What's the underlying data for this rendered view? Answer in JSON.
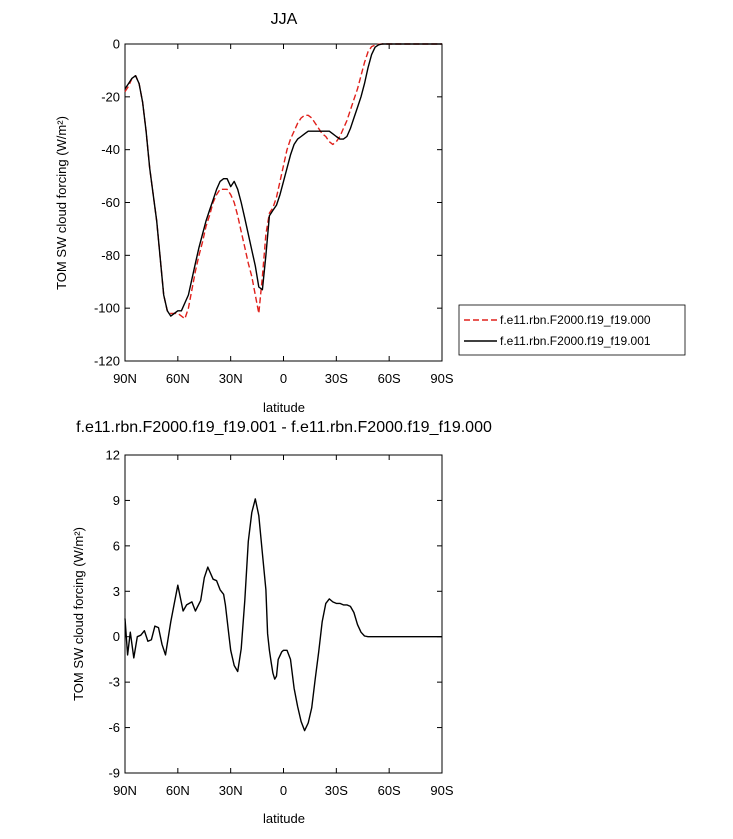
{
  "chart_data": [
    {
      "type": "line",
      "title": "JJA",
      "xlabel": "latitude",
      "ylabel": "TOM SW cloud forcing (W/m²)",
      "xlim": [
        90,
        -90
      ],
      "ylim": [
        -120,
        0
      ],
      "xticks": [
        90,
        60,
        30,
        0,
        -30,
        -60,
        -90
      ],
      "xtick_labels": [
        "90N",
        "60N",
        "30N",
        "0",
        "30S",
        "60S",
        "90S"
      ],
      "yticks": [
        0,
        -20,
        -40,
        -60,
        -80,
        -100,
        -120
      ],
      "ytick_labels": [
        "0",
        "-20",
        "-40",
        "-60",
        "-80",
        "-100",
        "-120"
      ],
      "legend": {
        "placement": "outside-right",
        "entries": [
          "f.e11.rbn.F2000.f19_f19.000",
          "f.e11.rbn.F2000.f19_f19.001"
        ]
      },
      "series": [
        {
          "name": "f.e11.rbn.F2000.f19_f19.000",
          "color": "#e0201b",
          "dash": "dashed",
          "x": [
            90,
            88,
            86,
            84,
            82,
            80,
            78,
            76,
            74,
            72,
            70,
            68,
            66,
            64,
            62,
            60,
            58,
            56,
            54,
            52,
            50,
            48,
            46,
            44,
            42,
            40,
            38,
            36,
            34,
            32,
            30,
            28,
            26,
            24,
            22,
            20,
            18,
            16,
            14,
            12,
            10,
            8,
            6,
            4,
            2,
            0,
            -2,
            -4,
            -6,
            -8,
            -10,
            -12,
            -14,
            -16,
            -18,
            -20,
            -22,
            -24,
            -26,
            -28,
            -30,
            -32,
            -34,
            -36,
            -38,
            -40,
            -42,
            -44,
            -46,
            -48,
            -50,
            -52,
            -54,
            -56,
            -58,
            -60,
            -62,
            -64,
            -66,
            -68,
            -70,
            -72,
            -74,
            -76,
            -78,
            -80,
            -82,
            -84,
            -86,
            -88,
            -90
          ],
          "y": [
            -18,
            -16,
            -13,
            -12,
            -15,
            -22,
            -33,
            -47,
            -57,
            -67,
            -81,
            -95,
            -101,
            -102,
            -102,
            -102,
            -103,
            -104,
            -100,
            -93,
            -86,
            -80,
            -75,
            -69,
            -65,
            -60,
            -57,
            -55,
            -55,
            -55,
            -57,
            -60,
            -65,
            -71,
            -77,
            -83,
            -88,
            -95,
            -102,
            -88,
            -72,
            -64,
            -62,
            -58,
            -52,
            -46,
            -40,
            -36,
            -33,
            -30,
            -28,
            -27,
            -27,
            -28,
            -30,
            -32,
            -34,
            -35,
            -37,
            -38,
            -37,
            -35,
            -32,
            -29,
            -25,
            -21,
            -17,
            -12,
            -7,
            -3,
            -1,
            -0.4,
            -0.1,
            0,
            0,
            0,
            0,
            0,
            0,
            0,
            0,
            0,
            0,
            0,
            0,
            0,
            0,
            0,
            0,
            0,
            0
          ]
        },
        {
          "name": "f.e11.rbn.F2000.f19_f19.001",
          "color": "#000000",
          "dash": "solid",
          "x": [
            90,
            88,
            86,
            84,
            82,
            80,
            78,
            76,
            74,
            72,
            70,
            68,
            66,
            64,
            62,
            60,
            58,
            56,
            54,
            52,
            50,
            48,
            46,
            44,
            42,
            40,
            38,
            36,
            34,
            32,
            30,
            28,
            26,
            24,
            22,
            20,
            18,
            16,
            14,
            12,
            10,
            8,
            6,
            4,
            2,
            0,
            -2,
            -4,
            -6,
            -8,
            -10,
            -12,
            -14,
            -16,
            -18,
            -20,
            -22,
            -24,
            -26,
            -28,
            -30,
            -32,
            -34,
            -36,
            -38,
            -40,
            -42,
            -44,
            -46,
            -48,
            -50,
            -52,
            -54,
            -56,
            -58,
            -60,
            -62,
            -64,
            -66,
            -68,
            -70,
            -72,
            -74,
            -76,
            -78,
            -80,
            -82,
            -84,
            -86,
            -88,
            -90
          ],
          "y": [
            -17,
            -15,
            -13,
            -12,
            -15,
            -22,
            -33,
            -47,
            -57,
            -67,
            -81,
            -95,
            -101,
            -103,
            -102,
            -101,
            -101,
            -98,
            -95,
            -89,
            -83,
            -77,
            -72,
            -67,
            -63,
            -59,
            -55,
            -52,
            -51,
            -51,
            -54,
            -52,
            -55,
            -60,
            -66,
            -72,
            -78,
            -84,
            -92,
            -93,
            -80,
            -65,
            -63,
            -61,
            -57,
            -52,
            -47,
            -42,
            -38,
            -36,
            -35,
            -34,
            -33,
            -33,
            -33,
            -33,
            -33,
            -33,
            -33,
            -34,
            -35,
            -36,
            -36,
            -35,
            -32,
            -28,
            -24,
            -20,
            -15,
            -9,
            -4,
            -1.2,
            -0.3,
            0,
            0,
            0,
            0,
            0,
            0,
            0,
            0,
            0,
            0,
            0,
            0,
            0,
            0,
            0,
            0,
            0,
            0
          ]
        }
      ]
    },
    {
      "type": "line",
      "title": "f.e11.rbn.F2000.f19_f19.001 - f.e11.rbn.F2000.f19_f19.000",
      "xlabel": "latitude",
      "ylabel": "TOM SW cloud forcing (W/m²)",
      "xlim": [
        90,
        -90
      ],
      "ylim": [
        -9,
        12
      ],
      "xticks": [
        90,
        60,
        30,
        0,
        -30,
        -60,
        -90
      ],
      "xtick_labels": [
        "90N",
        "60N",
        "30N",
        "0",
        "30S",
        "60S",
        "90S"
      ],
      "yticks": [
        12,
        9,
        6,
        3,
        0,
        -3,
        -6,
        -9
      ],
      "ytick_labels": [
        "12",
        "9",
        "6",
        "3",
        "0",
        "-3",
        "-6",
        "-9"
      ],
      "series": [
        {
          "color": "#000000",
          "dash": "solid",
          "x": [
            90,
            88.5,
            87,
            85,
            83,
            81,
            79,
            77,
            75,
            73,
            71,
            69,
            67,
            64,
            62,
            60,
            57,
            55,
            52,
            50,
            47,
            45,
            43,
            40,
            38,
            36,
            34,
            33,
            31,
            30,
            28,
            26,
            24,
            22,
            20,
            18,
            16,
            14,
            12,
            10,
            9,
            8,
            7,
            6,
            5,
            4,
            3,
            1,
            0,
            -2,
            -4,
            -6,
            -8,
            -10,
            -12,
            -14,
            -16,
            -18,
            -20,
            -22,
            -24,
            -26,
            -28,
            -30,
            -32,
            -34,
            -36,
            -38,
            -40,
            -42,
            -44,
            -46,
            -48,
            -50,
            -52,
            -54,
            -56,
            -58,
            -60,
            -62,
            -64,
            -66,
            -68,
            -70,
            -75,
            -80,
            -85,
            -90
          ],
          "y": [
            1.2,
            -1.2,
            0.3,
            -1.4,
            0,
            0.1,
            0.4,
            -0.3,
            -0.2,
            0.7,
            0.6,
            -0.5,
            -1.2,
            1.0,
            2.2,
            3.4,
            1.7,
            2.1,
            2.3,
            1.7,
            2.4,
            3.9,
            4.6,
            3.8,
            3.7,
            3.1,
            2.8,
            2.1,
            0.1,
            -0.9,
            -1.9,
            -2.3,
            -0.8,
            2.4,
            6.3,
            8.2,
            9.1,
            8.0,
            5.5,
            3.1,
            0.2,
            -0.9,
            -1.7,
            -2.4,
            -2.8,
            -2.6,
            -1.5,
            -1.0,
            -0.9,
            -0.9,
            -1.5,
            -3.4,
            -4.6,
            -5.6,
            -6.2,
            -5.7,
            -4.7,
            -2.8,
            -1.0,
            1.0,
            2.2,
            2.5,
            2.3,
            2.2,
            2.2,
            2.1,
            2.1,
            2.0,
            1.6,
            0.8,
            0.3,
            0.05,
            0,
            0,
            0,
            0,
            0,
            0,
            0,
            0,
            0,
            0,
            0,
            0,
            0,
            0,
            0,
            0
          ]
        }
      ]
    }
  ]
}
